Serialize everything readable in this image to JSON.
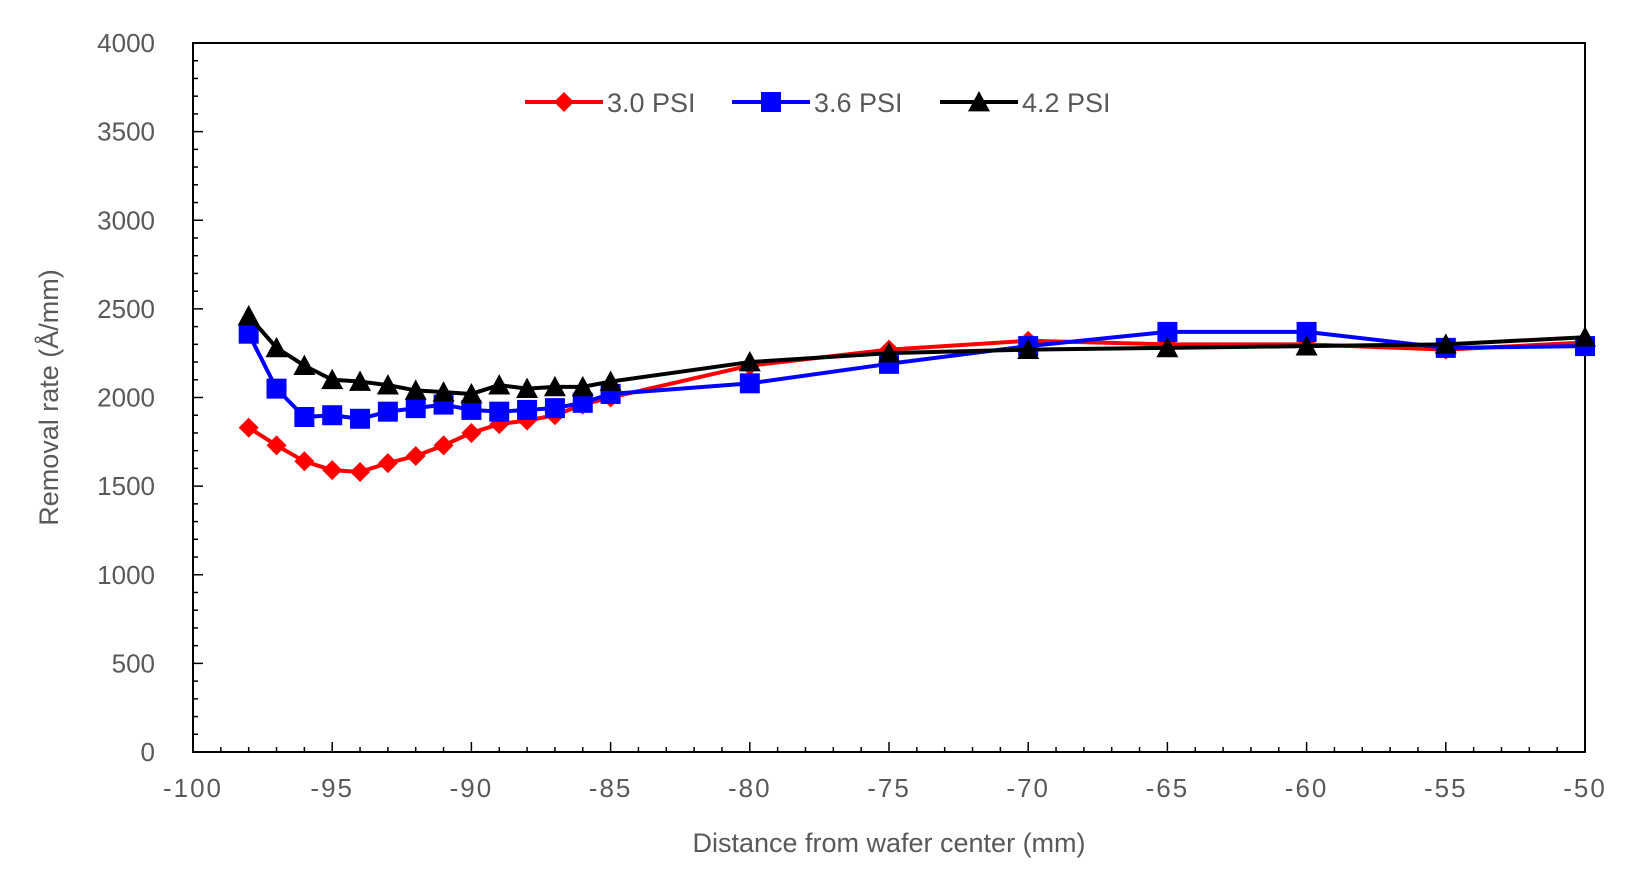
{
  "chart_data": {
    "type": "line",
    "title": "",
    "xlabel": "Distance from wafer center (mm)",
    "ylabel": "Removal rate (Å/mm)",
    "xlim": [
      -100,
      -50
    ],
    "ylim": [
      0,
      4000
    ],
    "x_ticks": [
      -100,
      -95,
      -90,
      -85,
      -80,
      -75,
      -70,
      -65,
      -60,
      -55,
      -50
    ],
    "y_ticks": [
      0,
      500,
      1000,
      1500,
      2000,
      2500,
      3000,
      3500,
      4000
    ],
    "grid": false,
    "legend_position": "top",
    "series": [
      {
        "name": "3.0 PSI",
        "color": "#ff0000",
        "marker": "diamond",
        "points": [
          {
            "x": -98,
            "y": 1830
          },
          {
            "x": -97,
            "y": 1730
          },
          {
            "x": -96,
            "y": 1640
          },
          {
            "x": -95,
            "y": 1590
          },
          {
            "x": -94,
            "y": 1580
          },
          {
            "x": -93,
            "y": 1630
          },
          {
            "x": -92,
            "y": 1670
          },
          {
            "x": -91,
            "y": 1730
          },
          {
            "x": -90,
            "y": 1800
          },
          {
            "x": -89,
            "y": 1850
          },
          {
            "x": -88,
            "y": 1870
          },
          {
            "x": -87,
            "y": 1900
          },
          {
            "x": -86,
            "y": 1960
          },
          {
            "x": -85,
            "y": 2000
          },
          {
            "x": -80,
            "y": 2180
          },
          {
            "x": -75,
            "y": 2270
          },
          {
            "x": -70,
            "y": 2320
          },
          {
            "x": -65,
            "y": 2300
          },
          {
            "x": -60,
            "y": 2300
          },
          {
            "x": -55,
            "y": 2270
          },
          {
            "x": -50,
            "y": 2310
          }
        ]
      },
      {
        "name": "3.6 PSI",
        "color": "#0000ff",
        "marker": "square",
        "points": [
          {
            "x": -98,
            "y": 2360
          },
          {
            "x": -97,
            "y": 2050
          },
          {
            "x": -96,
            "y": 1890
          },
          {
            "x": -95,
            "y": 1900
          },
          {
            "x": -94,
            "y": 1880
          },
          {
            "x": -93,
            "y": 1920
          },
          {
            "x": -92,
            "y": 1940
          },
          {
            "x": -91,
            "y": 1960
          },
          {
            "x": -90,
            "y": 1930
          },
          {
            "x": -89,
            "y": 1920
          },
          {
            "x": -88,
            "y": 1930
          },
          {
            "x": -87,
            "y": 1940
          },
          {
            "x": -86,
            "y": 1970
          },
          {
            "x": -85,
            "y": 2020
          },
          {
            "x": -80,
            "y": 2080
          },
          {
            "x": -75,
            "y": 2190
          },
          {
            "x": -70,
            "y": 2290
          },
          {
            "x": -65,
            "y": 2370
          },
          {
            "x": -60,
            "y": 2370
          },
          {
            "x": -55,
            "y": 2280
          },
          {
            "x": -50,
            "y": 2290
          }
        ]
      },
      {
        "name": "4.2 PSI",
        "color": "#000000",
        "marker": "triangle",
        "points": [
          {
            "x": -98,
            "y": 2460
          },
          {
            "x": -97,
            "y": 2280
          },
          {
            "x": -96,
            "y": 2180
          },
          {
            "x": -95,
            "y": 2100
          },
          {
            "x": -94,
            "y": 2090
          },
          {
            "x": -93,
            "y": 2070
          },
          {
            "x": -92,
            "y": 2040
          },
          {
            "x": -91,
            "y": 2030
          },
          {
            "x": -90,
            "y": 2020
          },
          {
            "x": -89,
            "y": 2070
          },
          {
            "x": -88,
            "y": 2050
          },
          {
            "x": -87,
            "y": 2060
          },
          {
            "x": -86,
            "y": 2060
          },
          {
            "x": -85,
            "y": 2090
          },
          {
            "x": -80,
            "y": 2200
          },
          {
            "x": -75,
            "y": 2250
          },
          {
            "x": -70,
            "y": 2270
          },
          {
            "x": -65,
            "y": 2280
          },
          {
            "x": -60,
            "y": 2290
          },
          {
            "x": -55,
            "y": 2300
          },
          {
            "x": -50,
            "y": 2340
          }
        ]
      }
    ]
  }
}
